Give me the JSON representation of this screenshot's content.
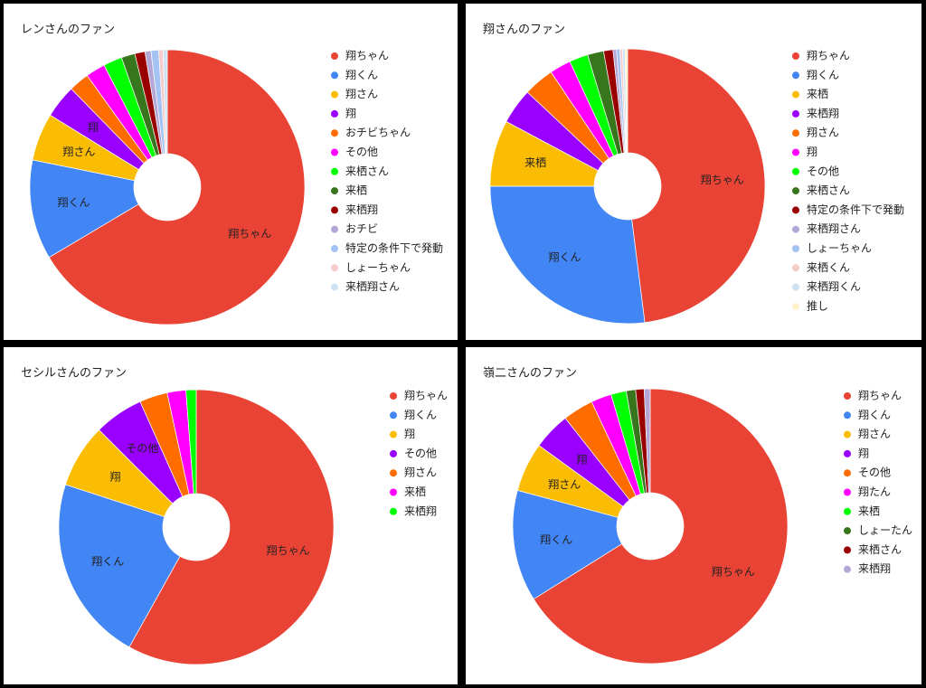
{
  "chart_data": [
    {
      "type": "pie",
      "donut": true,
      "title": "レンさんのファン",
      "categories": [
        "翔ちゃん",
        "翔くん",
        "翔さん",
        "翔",
        "おチビちゃん",
        "その他",
        "来栖さん",
        "来栖",
        "来栖翔",
        "おチビ",
        "特定の条件下で発動",
        "しょーちゃん",
        "来栖翔さん"
      ],
      "values": [
        66.4,
        11.7,
        5.6,
        3.9,
        2.4,
        2.3,
        2.2,
        1.6,
        1.2,
        0.7,
        0.9,
        0.5,
        0.5
      ],
      "colors": [
        "#e94335",
        "#4285f4",
        "#fbbc04",
        "#9900ff",
        "#ff6d01",
        "#ff00ff",
        "#00ff00",
        "#38761d",
        "#990000",
        "#b4a7d6",
        "#a4c2f4",
        "#f4cccc",
        "#cfe2f3"
      ]
    },
    {
      "type": "pie",
      "donut": true,
      "title": "翔さんのファン",
      "categories": [
        "翔ちゃん",
        "翔くん",
        "来栖",
        "来栖翔",
        "翔さん",
        "翔",
        "その他",
        "来栖さん",
        "特定の条件下で発動",
        "来栖翔さん",
        "しょーちゃん",
        "来栖くん",
        "来栖翔くん",
        "推し"
      ],
      "values": [
        48,
        27,
        7.8,
        4.2,
        3.6,
        2.5,
        2.2,
        1.9,
        1.1,
        0.4,
        0.4,
        0.3,
        0.3,
        0.3
      ],
      "colors": [
        "#e94335",
        "#4285f4",
        "#fbbc04",
        "#9900ff",
        "#ff6d01",
        "#ff00ff",
        "#00ff00",
        "#38761d",
        "#990000",
        "#b4a7d6",
        "#a4c2f4",
        "#f4cccc",
        "#cfe2f3",
        "#fff2cc"
      ]
    },
    {
      "type": "pie",
      "donut": true,
      "title": "セシルさんのファン",
      "categories": [
        "翔ちゃん",
        "翔くん",
        "翔",
        "その他",
        "翔さん",
        "来栖",
        "来栖翔"
      ],
      "values": [
        58.1,
        21.9,
        7.5,
        5.8,
        3.3,
        2.2,
        1.2
      ],
      "colors": [
        "#e94335",
        "#4285f4",
        "#fbbc04",
        "#9900ff",
        "#ff6d01",
        "#ff00ff",
        "#00ff00"
      ]
    },
    {
      "type": "pie",
      "donut": true,
      "title": "嶺二さんのファン",
      "categories": [
        "翔ちゃん",
        "翔くん",
        "翔さん",
        "翔",
        "その他",
        "翔たん",
        "来栖",
        "しょーたん",
        "来栖さん",
        "来栖翔"
      ],
      "values": [
        66.1,
        13.1,
        5.8,
        4.4,
        3.6,
        2.4,
        1.8,
        1.1,
        1.0,
        0.7
      ],
      "colors": [
        "#e94335",
        "#4285f4",
        "#fbbc04",
        "#9900ff",
        "#ff6d01",
        "#ff00ff",
        "#00ff00",
        "#38761d",
        "#990000",
        "#b4a7d6"
      ]
    }
  ]
}
